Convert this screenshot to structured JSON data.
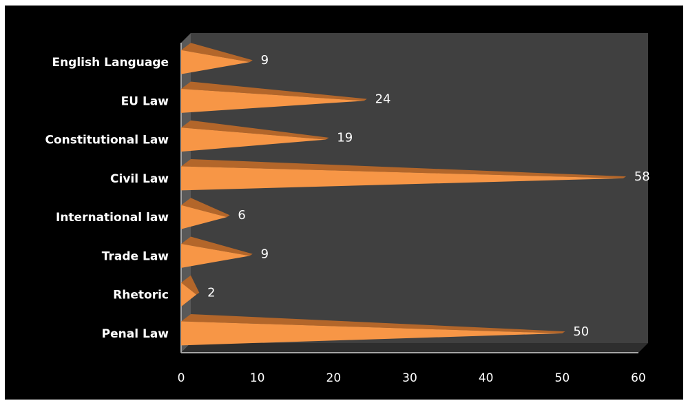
{
  "chart_data": {
    "type": "bar",
    "orientation": "horizontal",
    "style": "3d-cone",
    "categories": [
      "English Language",
      "EU Law",
      "Constitutional Law",
      "Civil Law",
      "International law",
      "Trade Law",
      "Rhetoric",
      "Penal Law"
    ],
    "values": [
      9,
      24,
      19,
      58,
      6,
      9,
      2,
      50
    ],
    "xlim": [
      0,
      60
    ],
    "xticks": [
      0,
      10,
      20,
      30,
      40,
      50,
      60
    ],
    "grid": false,
    "legend": "none",
    "colors": {
      "background": "#000000",
      "plot_wall": "#404040",
      "plot_wall_top": "#4a4a4a",
      "floor_edge": "#a6a6a6",
      "bar_light": "#f79646",
      "bar_dark": "#b3662a",
      "text": "#ffffff"
    }
  }
}
